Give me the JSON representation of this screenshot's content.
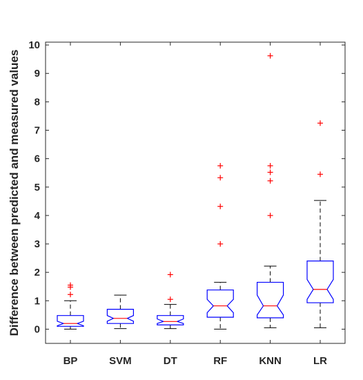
{
  "chart_data": {
    "type": "box",
    "ylabel": "Difference between predicted and measured values",
    "ylim": [
      -0.5,
      10.1
    ],
    "yticks": [
      0,
      1,
      2,
      3,
      4,
      5,
      6,
      7,
      8,
      9,
      10
    ],
    "grid": false,
    "box_color": "#0000ff",
    "median_color": "#ff0000",
    "outlier_color": "#ff0000",
    "whisker_color": "#000000",
    "categories": [
      "BP",
      "SVM",
      "DT",
      "RF",
      "KNN",
      "LR"
    ],
    "series": [
      {
        "q1": 0.1,
        "median": 0.2,
        "q3": 0.48,
        "whisker_low": 0.0,
        "whisker_high": 1.0,
        "notch_low": 0.12,
        "notch_high": 0.28,
        "outliers": [
          1.22,
          1.48,
          1.55
        ]
      },
      {
        "q1": 0.2,
        "median": 0.38,
        "q3": 0.7,
        "whisker_low": 0.02,
        "whisker_high": 1.2,
        "notch_low": 0.28,
        "notch_high": 0.48,
        "outliers": []
      },
      {
        "q1": 0.15,
        "median": 0.27,
        "q3": 0.48,
        "whisker_low": 0.02,
        "whisker_high": 0.87,
        "notch_low": 0.2,
        "notch_high": 0.36,
        "outliers": [
          1.05,
          1.92
        ]
      },
      {
        "q1": 0.42,
        "median": 0.82,
        "q3": 1.38,
        "whisker_low": 0.0,
        "whisker_high": 1.65,
        "notch_low": 0.58,
        "notch_high": 1.05,
        "outliers": [
          3.0,
          4.32,
          5.33,
          5.75
        ]
      },
      {
        "q1": 0.4,
        "median": 0.82,
        "q3": 1.65,
        "whisker_low": 0.05,
        "whisker_high": 2.22,
        "notch_low": 0.5,
        "notch_high": 1.2,
        "outliers": [
          4.0,
          5.22,
          5.52,
          5.75,
          9.62
        ]
      },
      {
        "q1": 0.93,
        "median": 1.4,
        "q3": 2.4,
        "whisker_low": 0.05,
        "whisker_high": 4.53,
        "notch_low": 1.05,
        "notch_high": 1.75,
        "outliers": [
          5.45,
          7.25
        ]
      }
    ]
  }
}
